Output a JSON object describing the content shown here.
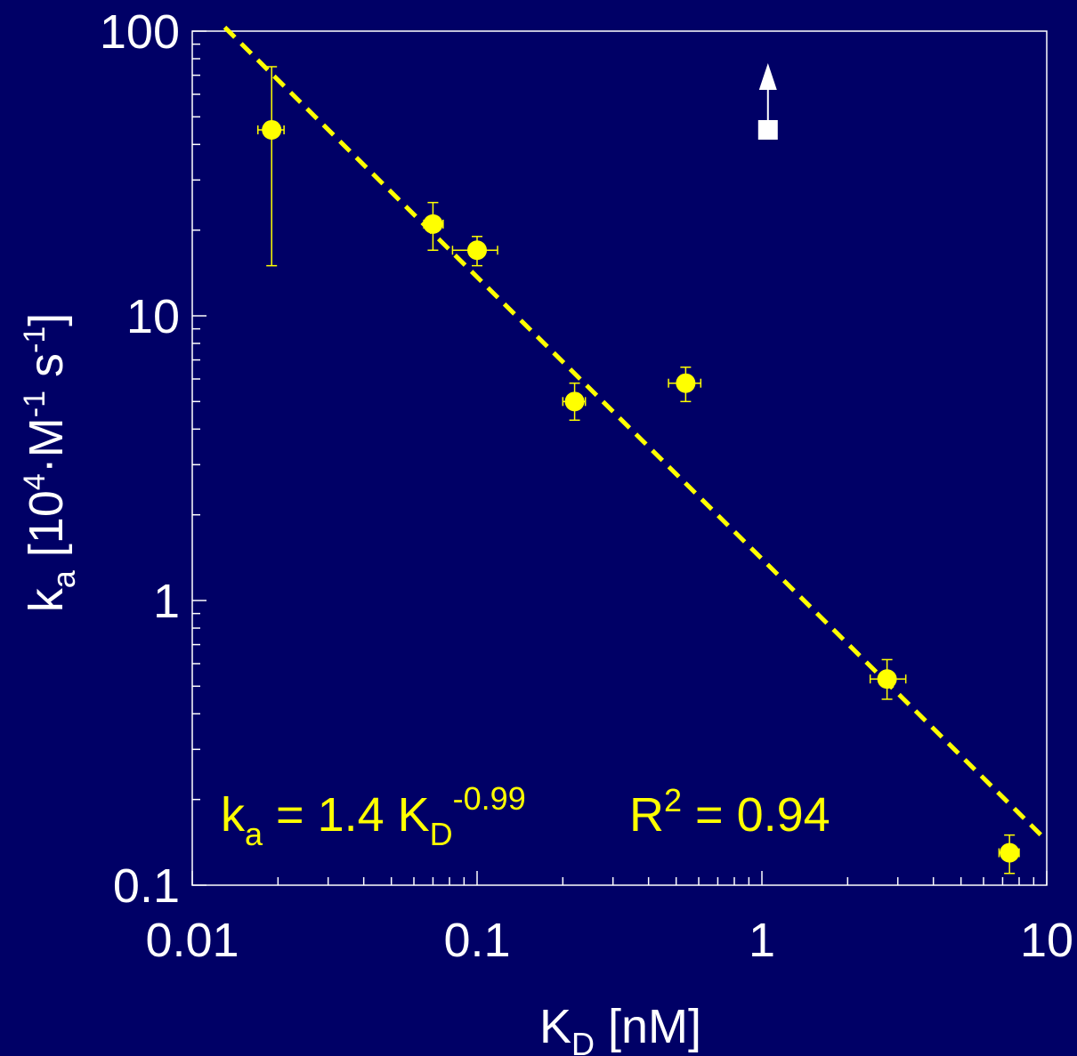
{
  "colors": {
    "background": "#000066",
    "axis": "#ffffff",
    "data": "#ffff00",
    "marker": "#ffffff"
  },
  "chart_data": {
    "type": "scatter",
    "x_scale": "log",
    "y_scale": "log",
    "xlim": [
      0.01,
      10
    ],
    "ylim": [
      0.1,
      100
    ],
    "x_ticks": [
      "0.01",
      "0.1",
      "1",
      "10"
    ],
    "y_ticks": [
      "100",
      "10",
      "1",
      "0.1"
    ],
    "xlabel": {
      "main": "K",
      "sub": "D",
      "rest": " [nM]"
    },
    "ylabel": {
      "main": "k",
      "sub": "a",
      "p1": " [10",
      "sup1": "4",
      "p2": "·M",
      "sup2": "-1",
      "p3": " s",
      "sup3": "-1",
      "p4": "]"
    },
    "points": [
      {
        "x": 0.019,
        "y": 45,
        "yerr": [
          15,
          75
        ],
        "xerr": [
          0.017,
          0.021
        ]
      },
      {
        "x": 0.07,
        "y": 21,
        "yerr": [
          17,
          25
        ],
        "xerr": [
          0.065,
          0.076
        ]
      },
      {
        "x": 0.1,
        "y": 17,
        "yerr": [
          15,
          19
        ],
        "xerr": [
          0.082,
          0.118
        ]
      },
      {
        "x": 0.22,
        "y": 5.0,
        "yerr": [
          4.3,
          5.8
        ],
        "xerr": [
          0.2,
          0.24
        ]
      },
      {
        "x": 0.54,
        "y": 5.8,
        "yerr": [
          5.0,
          6.6
        ],
        "xerr": [
          0.47,
          0.61
        ]
      },
      {
        "x": 2.75,
        "y": 0.53,
        "yerr": [
          0.45,
          0.62
        ],
        "xerr": [
          2.4,
          3.2
        ]
      },
      {
        "x": 7.4,
        "y": 0.13,
        "yerr": [
          0.11,
          0.15
        ],
        "xerr": [
          6.8,
          8.0
        ]
      }
    ],
    "fit": {
      "a": 1.4,
      "b": -0.99,
      "x_range": [
        0.013,
        10
      ],
      "style": "dashed"
    },
    "lower_bound_marker": {
      "x": 1.05,
      "y": 45,
      "arrow": "up"
    },
    "annotation": {
      "k": "k",
      "k_sub": "a",
      "mid": " = 1.4 K",
      "K_sub": "D",
      "exp": "-0.99",
      "r": "R",
      "r_sup": "2",
      "r_val": " = 0.94"
    }
  }
}
